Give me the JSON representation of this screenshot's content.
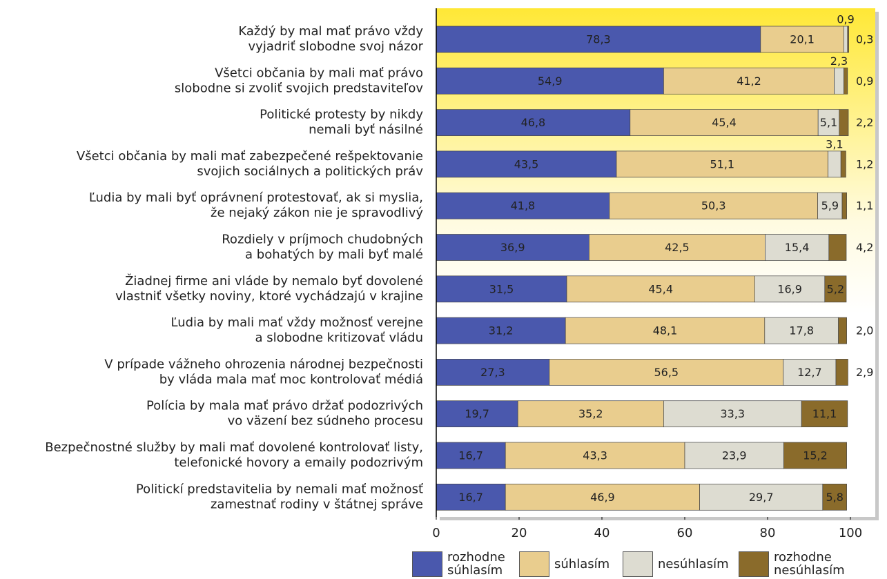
{
  "chart_data": {
    "type": "stacked-bar-horizontal",
    "categories": [
      [
        "Každý by mal mať právo vždy",
        "vyjadriť slobodne svoj názor"
      ],
      [
        "Všetci občania by mali mať právo",
        "slobodne si zvoliť svojich predstaviteľov"
      ],
      [
        "Politické protesty by nikdy",
        "nemali byť násilné"
      ],
      [
        "Všetci občania by mali mať zabezpečené rešpektovanie",
        "svojich sociálnych a politických práv"
      ],
      [
        "Ľudia by mali byť oprávnení protestovať, ak si myslia,",
        "že nejaký zákon nie je spravodlivý"
      ],
      [
        "Rozdiely v príjmoch chudobných",
        "a bohatých by mali byť malé"
      ],
      [
        "Žiadnej firme ani vláde by nemalo byť dovolené",
        "vlastniť všetky noviny, ktoré vychádzajú v krajine"
      ],
      [
        "Ľudia by mali mať vždy možnosť verejne",
        "a slobodne kritizovať vládu"
      ],
      [
        "V prípade vážneho ohrozenia národnej bezpečnosti",
        "by vláda mala mať moc kontrolovať médiá"
      ],
      [
        "Polícia by mala mať právo držať podozrivých",
        "vo väzení bez súdneho procesu"
      ],
      [
        "Bezpečnostné služby by mali mať dovolené kontrolovať listy,",
        "telefonické hovory a emaily podozrivým"
      ],
      [
        "Politickí predstavitelia by nemali mať možnosť",
        "zamestnať rodiny v štátnej správe"
      ]
    ],
    "series": [
      {
        "name": "rozhodne súhlasím",
        "color": "#4a58ad",
        "text_color": "#ffffff",
        "values": [
          78.3,
          54.9,
          46.8,
          43.5,
          41.8,
          36.9,
          31.5,
          31.2,
          27.3,
          19.7,
          16.7,
          16.7
        ],
        "value_labels": [
          "78,3",
          "54,9",
          "46,8",
          "43,5",
          "41,8",
          "36,9",
          "31,5",
          "31,2",
          "27,3",
          "19,7",
          "16,7",
          "16,7"
        ]
      },
      {
        "name": "súhlasím",
        "color": "#e9cd8e",
        "text_color": "#222222",
        "values": [
          20.1,
          41.2,
          45.4,
          51.1,
          50.3,
          42.5,
          45.4,
          48.1,
          56.5,
          35.2,
          43.3,
          46.9
        ],
        "value_labels": [
          "20,1",
          "41,2",
          "45,4",
          "51,1",
          "50,3",
          "42,5",
          "45,4",
          "48,1",
          "56,5",
          "35,2",
          "43,3",
          "46,9"
        ]
      },
      {
        "name": "nesúhlasím",
        "color": "#dddcd1",
        "text_color": "#222222",
        "values": [
          0.9,
          2.3,
          5.1,
          3.1,
          5.9,
          15.4,
          16.9,
          17.8,
          12.7,
          33.3,
          23.9,
          29.7
        ],
        "value_labels": [
          "0,9",
          "2,3",
          "5,1",
          "3,1",
          "5,9",
          "15,4",
          "16,9",
          "17,8",
          "12,7",
          "33,3",
          "23,9",
          "29,7"
        ]
      },
      {
        "name": "rozhodne nesúhlasím",
        "color": "#8a6b2b",
        "text_color": "#ffffff",
        "values": [
          0.3,
          0.9,
          2.2,
          1.2,
          1.1,
          4.2,
          5.2,
          2.0,
          2.9,
          11.1,
          15.2,
          5.8
        ],
        "value_labels": [
          "0,3",
          "0,9",
          "2,2",
          "1,2",
          "1,1",
          "4,2",
          "5,2",
          "2,0",
          "2,9",
          "11,1",
          "15,2",
          "5,8"
        ]
      }
    ],
    "xlim": [
      0,
      100
    ],
    "xticks": [
      0,
      20,
      40,
      60,
      80,
      100
    ]
  }
}
